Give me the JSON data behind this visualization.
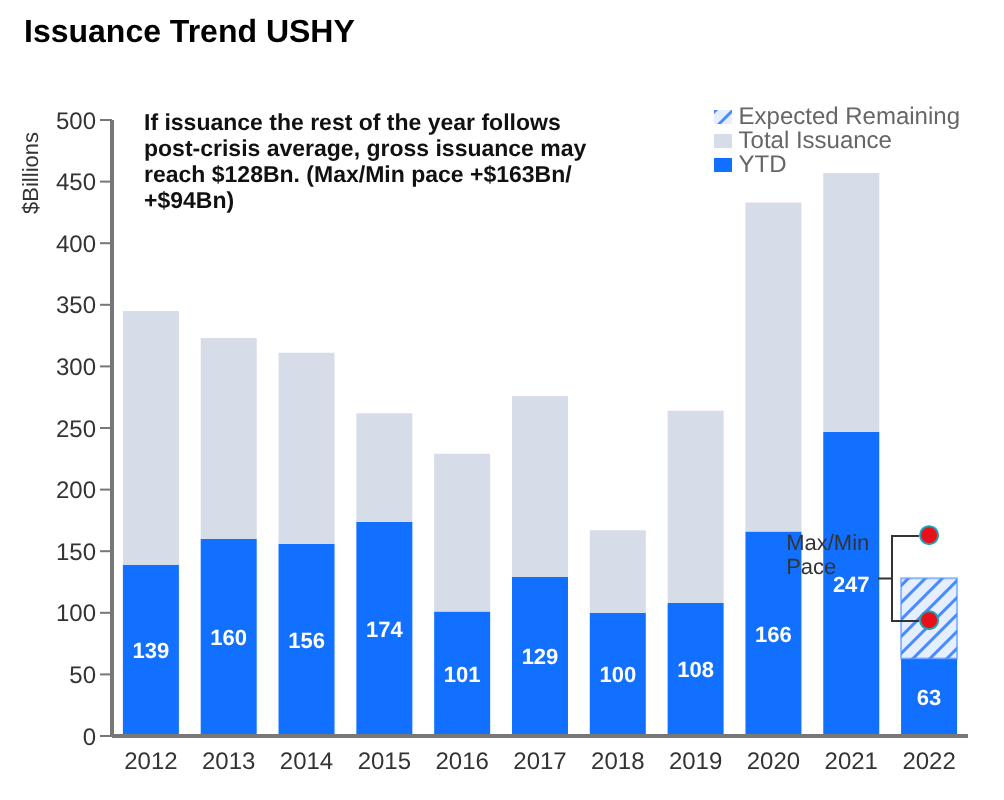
{
  "chart_data": {
    "type": "bar",
    "title": "Issuance Trend USHY",
    "ylabel": "$Billions",
    "categories": [
      "2012",
      "2013",
      "2014",
      "2015",
      "2016",
      "2017",
      "2018",
      "2019",
      "2020",
      "2021",
      "2022"
    ],
    "stacked": true,
    "series": [
      {
        "name": "YTD",
        "color": "#1170ff",
        "values": [
          139,
          160,
          156,
          174,
          101,
          129,
          100,
          108,
          166,
          247,
          63
        ],
        "value_labels": [
          "139",
          "160",
          "156",
          "174",
          "101",
          "129",
          "100",
          "108",
          "166",
          "247",
          "63"
        ]
      },
      {
        "name": "Total Issuance",
        "color": "#d6dce8",
        "values": [
          206,
          163,
          155,
          88,
          128,
          147,
          67,
          156,
          267,
          210,
          null
        ]
      },
      {
        "name": "Expected Remaining",
        "color": "#4a8cff",
        "values": [
          null,
          null,
          null,
          null,
          null,
          null,
          null,
          null,
          null,
          null,
          65
        ]
      },
      {
        "type": "scatter",
        "color": "#e8101a",
        "marker": "circle",
        "values": [
          null,
          null,
          null,
          null,
          null,
          null,
          null,
          null,
          null,
          null,
          163
        ]
      },
      {
        "type": "scatter",
        "color": "#e8101a",
        "marker": "circle",
        "values": [
          null,
          null,
          null,
          null,
          null,
          null,
          null,
          null,
          null,
          null,
          94
        ]
      }
    ],
    "ylim": [
      0,
      500
    ],
    "yticks": [
      0,
      50,
      100,
      150,
      200,
      250,
      300,
      350,
      400,
      450,
      500
    ],
    "grid": false,
    "legend": "top right",
    "annotations": [
      "If issuance the rest of the year follows post-crisis average, gross issuance may reach $128Bn. (Max/Min pace  +$163Bn/ +$94Bn)",
      "Max/Min Pace"
    ]
  }
}
